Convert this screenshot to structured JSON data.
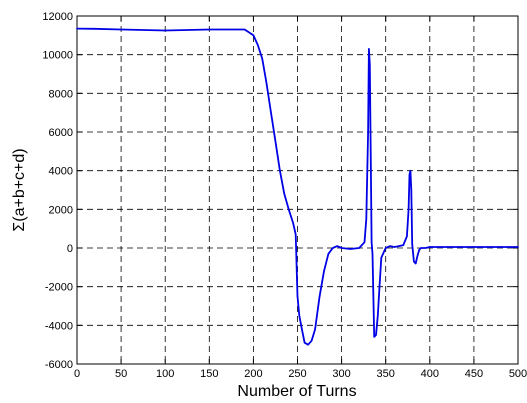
{
  "chart_data": {
    "type": "line",
    "title": "",
    "xlabel": "Number of Turns",
    "ylabel": "Σ(a+b+c+d)",
    "xlim": [
      0,
      500
    ],
    "ylim": [
      -6000,
      12000
    ],
    "xticks": [
      0,
      50,
      100,
      150,
      200,
      250,
      300,
      350,
      400,
      450,
      500
    ],
    "yticks": [
      -6000,
      -4000,
      -2000,
      0,
      2000,
      4000,
      6000,
      8000,
      10000,
      12000
    ],
    "grid": true,
    "line_color": "#0000e6",
    "series": [
      {
        "name": "",
        "x": [
          0,
          20,
          50,
          100,
          150,
          190,
          200,
          205,
          210,
          215,
          220,
          225,
          230,
          235,
          240,
          245,
          248,
          250,
          252,
          255,
          258,
          262,
          266,
          270,
          275,
          280,
          285,
          290,
          295,
          300,
          310,
          320,
          326,
          328,
          330,
          331,
          332,
          333,
          334,
          335,
          337,
          339,
          341,
          343,
          345,
          350,
          355,
          360,
          365,
          370,
          374,
          376,
          377,
          378,
          379,
          380,
          382,
          384,
          386,
          388,
          390,
          395,
          400,
          420,
          450,
          480,
          500
        ],
        "y": [
          11350,
          11340,
          11300,
          11250,
          11300,
          11300,
          11000,
          10500,
          9800,
          8500,
          7000,
          5500,
          4000,
          2800,
          2000,
          1300,
          700,
          -2500,
          -3500,
          -4200,
          -4900,
          -5000,
          -4800,
          -4200,
          -2500,
          -1200,
          -300,
          0,
          100,
          0,
          -50,
          0,
          300,
          1500,
          6000,
          10300,
          9500,
          5000,
          300,
          -300,
          -4600,
          -4500,
          -3500,
          -2000,
          -500,
          0,
          100,
          50,
          100,
          150,
          600,
          2000,
          3800,
          4000,
          3000,
          200,
          -700,
          -800,
          -400,
          -100,
          0,
          0,
          50,
          50,
          50,
          50,
          50
        ]
      }
    ]
  }
}
